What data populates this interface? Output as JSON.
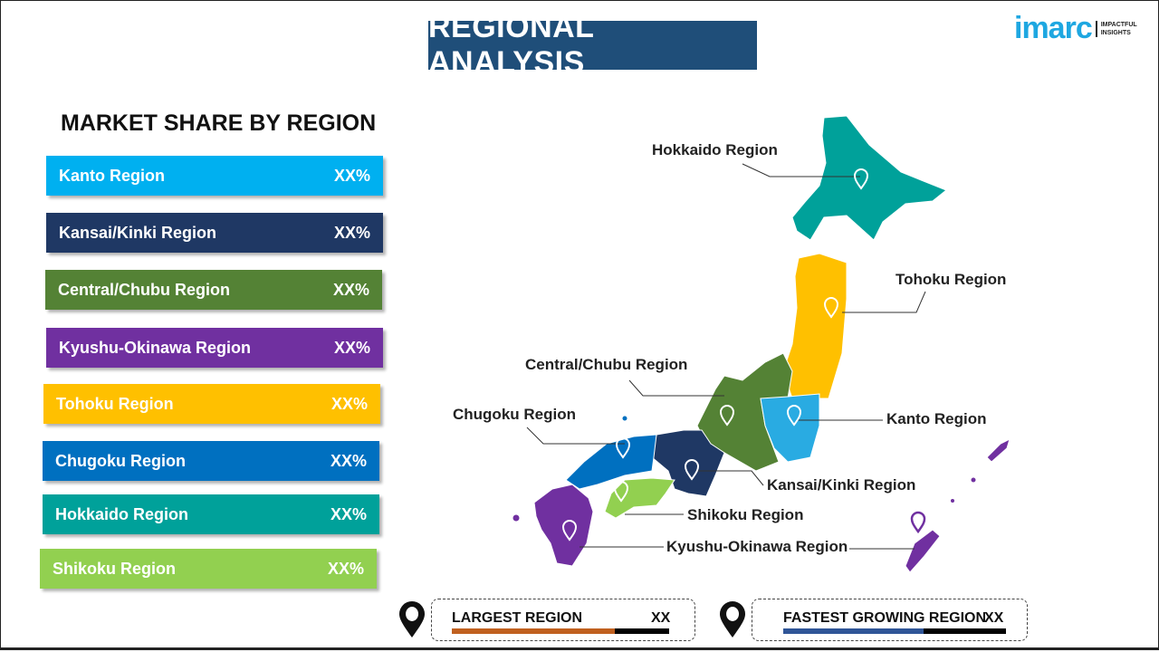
{
  "title": "REGIONAL ANALYSIS",
  "logo": {
    "brand": "imarc",
    "tagline_1": "IMPACTFUL",
    "tagline_2": "INSIGHTS"
  },
  "subtitle": "MARKET SHARE BY REGION",
  "regions": [
    {
      "label": "Kanto  Region",
      "value": "XX%",
      "color": "#00b0f0"
    },
    {
      "label": "Kansai/Kinki  Region",
      "value": "XX%",
      "color": "#1f3864"
    },
    {
      "label": "Central/Chubu  Region",
      "value": "XX%",
      "color": "#548235"
    },
    {
      "label": "Kyushu-Okinawa  Region",
      "value": "XX%",
      "color": "#7030a0"
    },
    {
      "label": "Tohoku  Region",
      "value": "XX%",
      "color": "#ffc000"
    },
    {
      "label": "Chugoku  Region",
      "value": "XX%",
      "color": "#0070c0"
    },
    {
      "label": "Hokkaido  Region",
      "value": "XX%",
      "color": "#00a19a"
    },
    {
      "label": "Shikoku  Region",
      "value": "XX%",
      "color": "#92d050"
    }
  ],
  "map_labels": {
    "hokkaido": "Hokkaido Region",
    "tohoku": "Tohoku Region",
    "central": "Central/Chubu Region",
    "chugoku": "Chugoku Region",
    "kanto": "Kanto Region",
    "kansai": "Kansai/Kinki Region",
    "shikoku": "Shikoku Region",
    "kyushu": "Kyushu-Okinawa Region"
  },
  "largest": {
    "label": "LARGEST REGION",
    "value": "XX",
    "fill_percent": 75,
    "color": "#c0601f"
  },
  "fastest": {
    "label": "FASTEST GROWING REGION",
    "value": "XX",
    "fill_percent": 63,
    "color": "#2f5597"
  }
}
